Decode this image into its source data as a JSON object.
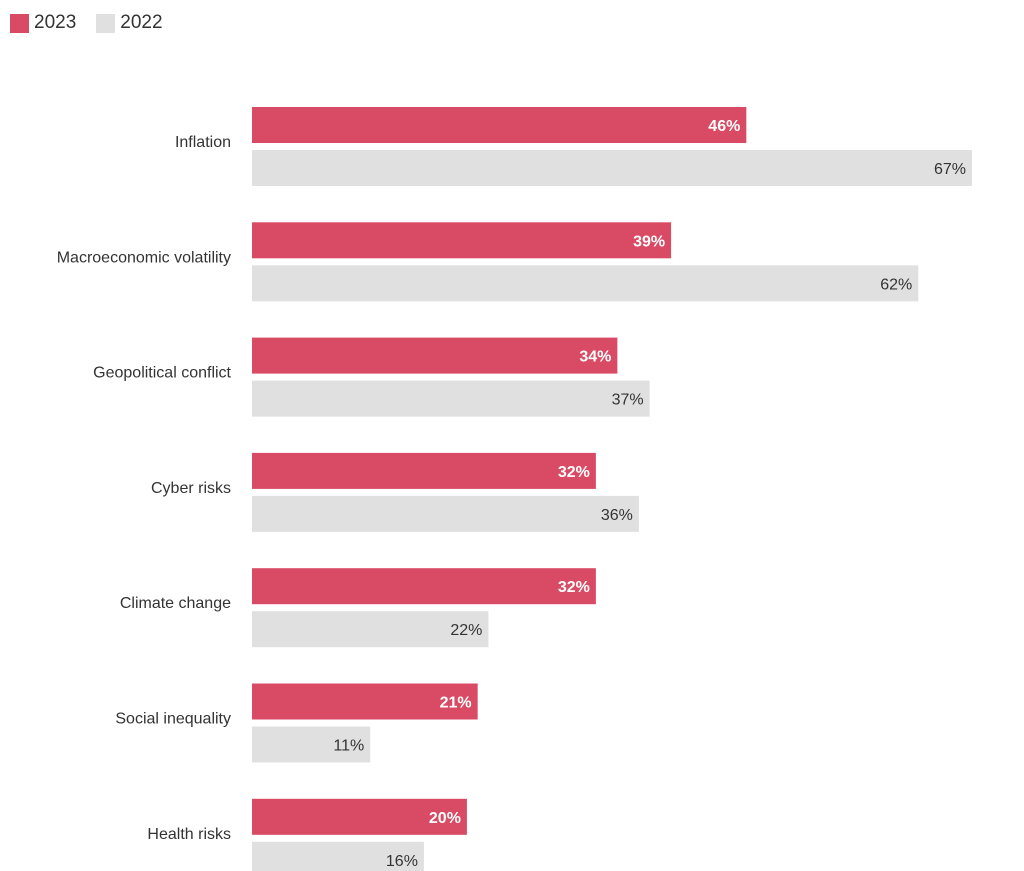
{
  "chart_data": {
    "type": "bar",
    "orientation": "horizontal",
    "categories": [
      "Inflation",
      "Macroeconomic volatility",
      "Geopolitical conflict",
      "Cyber risks",
      "Climate change",
      "Social inequality",
      "Health risks"
    ],
    "series": [
      {
        "name": "2023",
        "values": [
          46,
          39,
          34,
          32,
          32,
          21,
          20
        ],
        "labels": [
          "46%",
          "39%",
          "34%",
          "32%",
          "32%",
          "21%",
          "20%"
        ],
        "color": "#d94a64"
      },
      {
        "name": "2022",
        "values": [
          67,
          62,
          37,
          36,
          22,
          11,
          16
        ],
        "labels": [
          "67%",
          "62%",
          "37%",
          "36%",
          "22%",
          "11%",
          "16%"
        ],
        "color": "#e0e0e0"
      }
    ],
    "value_unit": "%",
    "legend": "top-left",
    "grid": false,
    "xlim": [
      0,
      67
    ]
  }
}
